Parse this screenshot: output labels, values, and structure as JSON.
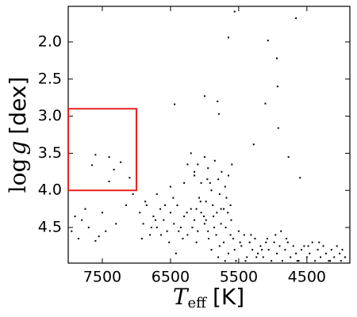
{
  "chart_data": {
    "type": "scatter",
    "xlabel": {
      "symbol": "T",
      "subscript": "eff",
      "unit": "[K]"
    },
    "ylabel": {
      "function": "log",
      "symbol": "g",
      "unit": "[dex]"
    },
    "xlim": [
      8000,
      3870
    ],
    "ylim": [
      1.52,
      4.98
    ],
    "xticks": [
      7500,
      6500,
      5500,
      4500
    ],
    "yticks": [
      {
        "value": 2,
        "label": "2.0"
      },
      2.5,
      {
        "value": 3,
        "label": "3.0"
      },
      3.5,
      {
        "value": 4,
        "label": "4.0"
      },
      4.5
    ],
    "highlight_box": {
      "xlim": [
        8000,
        7000
      ],
      "ylim": [
        2.9,
        4.0
      ],
      "color": "#e8211d"
    },
    "series": [
      {
        "color": "#000000",
        "x": [
          5560,
          5650,
          4660,
          5070,
          4940,
          4930,
          5110,
          6440,
          6000,
          5810,
          5790,
          4920,
          5280,
          4770,
          4600,
          7600,
          7400,
          7650,
          7330,
          7400,
          7100,
          7230,
          7800,
          7950,
          7700,
          7500,
          7550,
          7850,
          7300,
          7150,
          7900,
          7450,
          7750,
          7050,
          7600,
          6950,
          6900,
          6850,
          6800,
          6750,
          6700,
          6650,
          6600,
          6550,
          6500,
          6450,
          6400,
          6350,
          6300,
          6250,
          6200,
          6150,
          6100,
          6050,
          6000,
          6920,
          6870,
          6780,
          6720,
          6640,
          6580,
          6520,
          6460,
          6380,
          6320,
          6260,
          6180,
          6120,
          6060,
          6010,
          6700,
          6500,
          6300,
          6150,
          6420,
          6200,
          6150,
          6100,
          6050,
          6000,
          5950,
          5900,
          5850,
          5800,
          5750,
          5700,
          5650,
          5600,
          6080,
          5980,
          5880,
          5780,
          5680,
          6120,
          5920,
          5820,
          5720,
          6250,
          5620,
          5960,
          5980,
          5950,
          5900,
          5870,
          5830,
          5800,
          5760,
          5720,
          5690,
          5650,
          5610,
          5580,
          5540,
          5500,
          5460,
          5420,
          5380,
          5340,
          5300,
          5260,
          5220,
          5180,
          5140,
          5100,
          5060,
          5020,
          5940,
          5860,
          5780,
          5700,
          5620,
          5560,
          5480,
          5400,
          5320,
          5240,
          5160,
          5080,
          5660,
          5760,
          4980,
          4940,
          4900,
          4860,
          4820,
          4780,
          4740,
          4700,
          4660,
          4620,
          4580,
          4540,
          4500,
          4460,
          4420,
          4380,
          4340,
          4300,
          4260,
          4220,
          4180,
          4140,
          4100,
          4060,
          4020,
          3980,
          3940,
          4960,
          4800,
          4640,
          4480,
          4320,
          4160,
          4000,
          4880
        ],
        "values": [
          1.59,
          1.94,
          1.68,
          1.98,
          2.22,
          2.6,
          2.83,
          2.84,
          2.73,
          2.8,
          2.97,
          3.16,
          3.38,
          3.55,
          3.83,
          3.52,
          3.55,
          3.66,
          3.72,
          3.88,
          3.83,
          3.62,
          4.4,
          4.55,
          4.5,
          4.3,
          4.62,
          4.65,
          4.45,
          4.2,
          4.35,
          4.55,
          4.25,
          4.05,
          4.68,
          4.3,
          4.45,
          4.2,
          4.6,
          4.35,
          4.5,
          4.25,
          4.4,
          4.55,
          4.3,
          4.45,
          4.2,
          4.5,
          4.35,
          4.6,
          4.25,
          4.4,
          4.55,
          4.3,
          4.45,
          4.65,
          4.15,
          4.5,
          4.4,
          4.6,
          4.2,
          4.7,
          4.1,
          4.55,
          4.65,
          4.3,
          4.5,
          4.7,
          4.15,
          4.35,
          4.05,
          3.95,
          3.9,
          3.8,
          4.85,
          3.5,
          3.75,
          3.65,
          3.9,
          3.55,
          3.7,
          4.0,
          3.6,
          3.85,
          3.75,
          3.95,
          3.8,
          3.65,
          4.1,
          4.15,
          4.2,
          4.05,
          4.1,
          4.25,
          3.9,
          4.3,
          4.25,
          3.65,
          4.2,
          3.85,
          4.4,
          4.55,
          4.8,
          4.35,
          4.6,
          4.9,
          4.45,
          4.7,
          4.5,
          4.85,
          4.4,
          4.65,
          4.95,
          4.55,
          4.75,
          4.6,
          4.9,
          4.7,
          4.8,
          4.65,
          4.85,
          4.75,
          4.9,
          4.7,
          4.8,
          4.95,
          4.65,
          4.5,
          4.75,
          4.95,
          4.6,
          4.8,
          4.7,
          4.95,
          4.6,
          4.9,
          4.8,
          4.65,
          4.3,
          4.25,
          4.7,
          4.85,
          4.75,
          4.95,
          4.8,
          4.7,
          4.9,
          4.75,
          4.85,
          4.95,
          4.8,
          4.75,
          4.9,
          4.85,
          4.7,
          4.95,
          4.8,
          4.9,
          4.75,
          4.85,
          4.95,
          4.8,
          4.9,
          4.75,
          4.85,
          4.8,
          4.9,
          4.6,
          4.65,
          4.95,
          4.75,
          4.7,
          4.95,
          4.95,
          4.55
        ]
      }
    ]
  }
}
